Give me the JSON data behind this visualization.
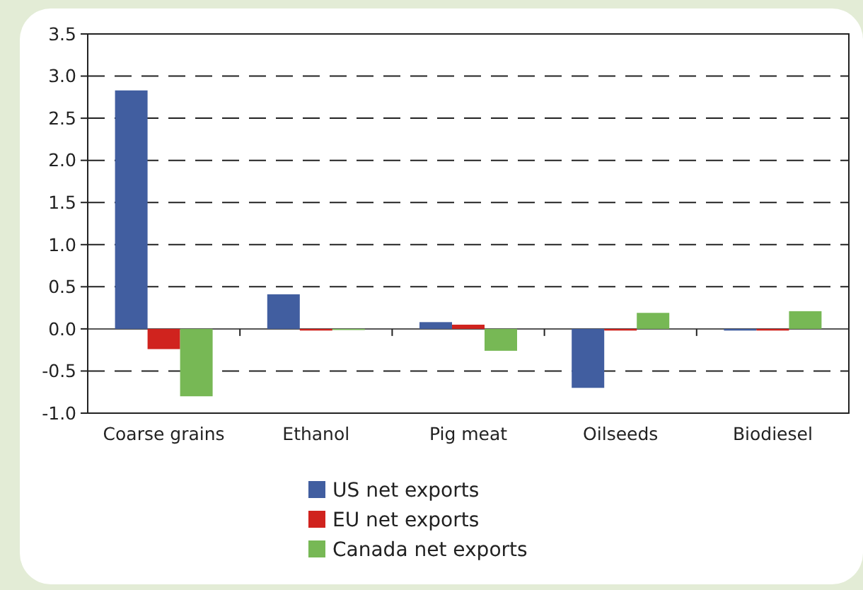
{
  "chart_data": {
    "type": "bar",
    "categories": [
      "Coarse grains",
      "Ethanol",
      "Pig meat",
      "Oilseeds",
      "Biodiesel"
    ],
    "series": [
      {
        "name": "US net exports",
        "color": "#415ea0",
        "values": [
          2.83,
          0.41,
          0.08,
          -0.7,
          -0.02
        ]
      },
      {
        "name": "EU net exports",
        "color": "#d0231e",
        "values": [
          -0.24,
          -0.02,
          0.05,
          -0.02,
          -0.02
        ]
      },
      {
        "name": "Canada net exports",
        "color": "#77b855",
        "values": [
          -0.8,
          -0.01,
          -0.26,
          0.19,
          0.21
        ]
      }
    ],
    "ylim": [
      -1.0,
      3.5
    ],
    "yticks": [
      {
        "value": -1,
        "label": "-1.0"
      },
      {
        "value": -0.5,
        "label": "-0.5"
      },
      {
        "value": 0,
        "label": "0.0"
      },
      {
        "value": 0.5,
        "label": "0.5"
      },
      {
        "value": 1,
        "label": "1.0"
      },
      {
        "value": 1.5,
        "label": "1.5"
      },
      {
        "value": 2,
        "label": "2.0"
      },
      {
        "value": 2.5,
        "label": "2.5"
      },
      {
        "value": 3,
        "label": "3.0"
      },
      {
        "value": 3.5,
        "label": "3.5"
      }
    ],
    "grid": "y",
    "legend": "bottom"
  }
}
